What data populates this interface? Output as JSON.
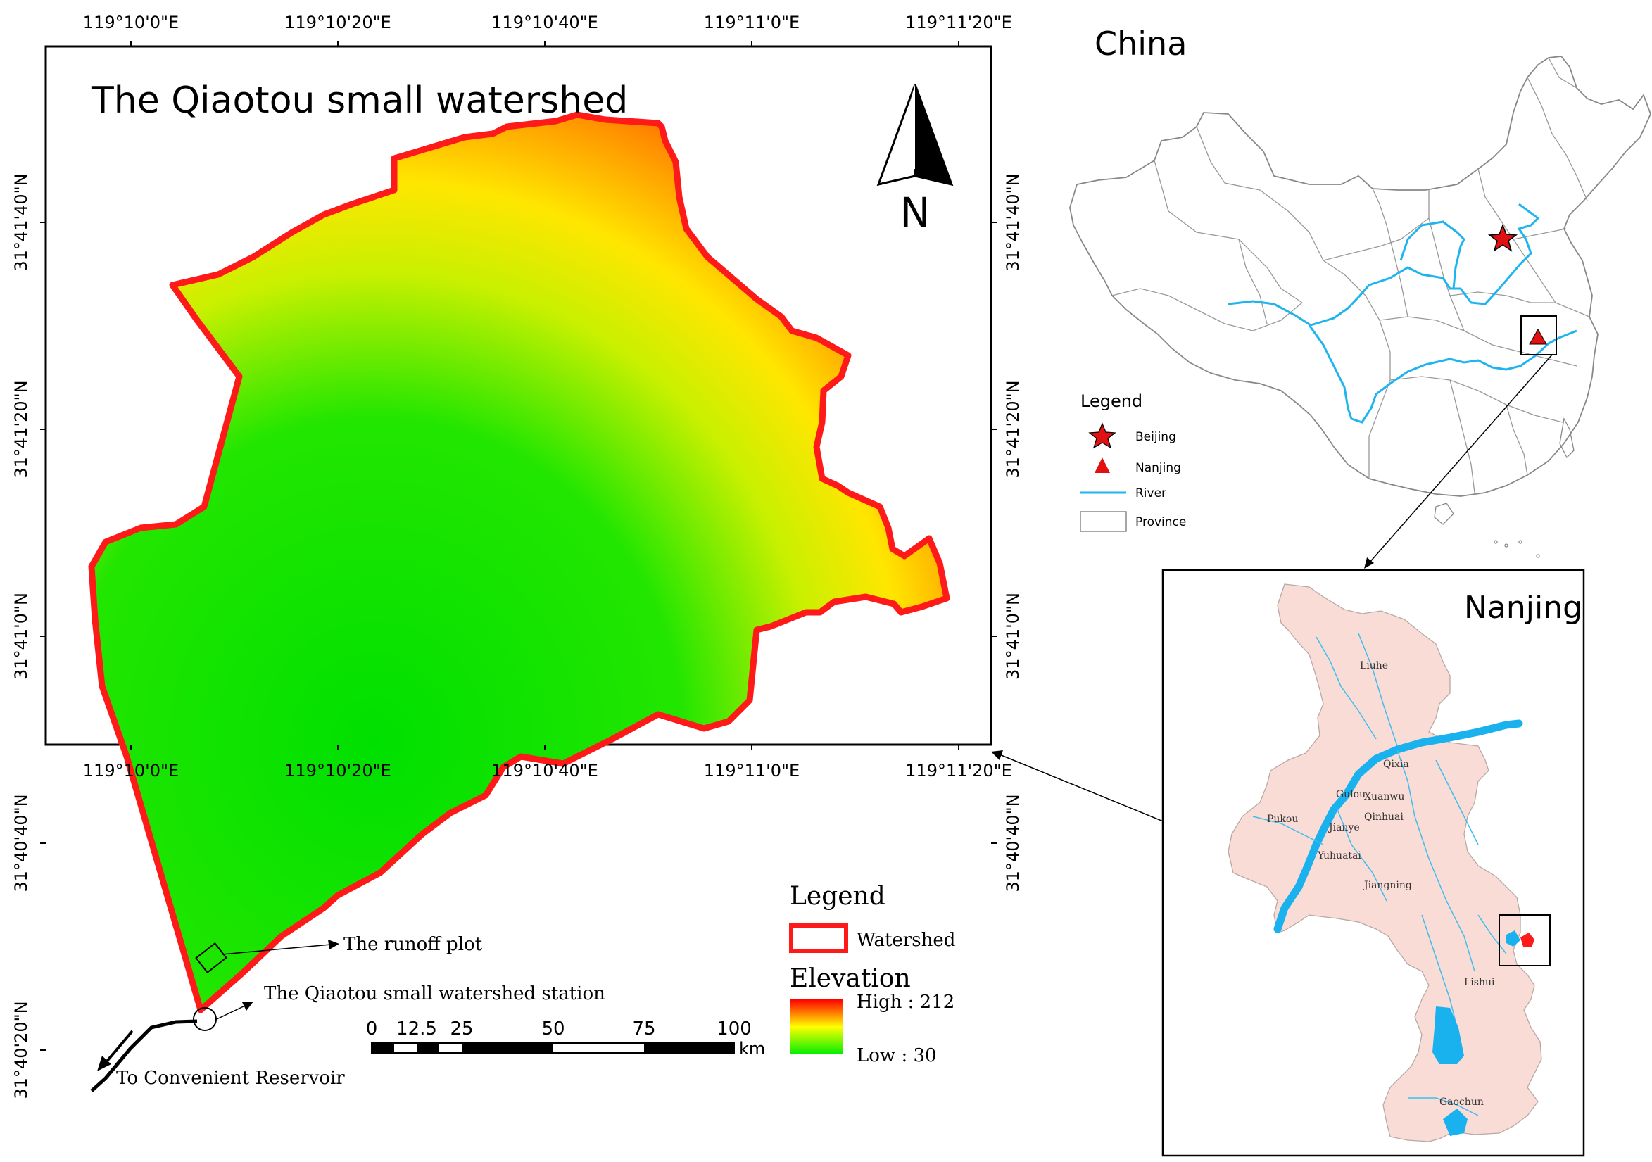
{
  "main_map": {
    "title": "The Qiaotou small watershed",
    "north_label": "N",
    "top_lon_ticks": [
      "119°10'0\"E",
      "119°10'20\"E",
      "119°10'40\"E",
      "119°11'0\"E",
      "119°11'20\"E"
    ],
    "bottom_lon_ticks": [
      "119°10'0\"E",
      "119°10'20\"E",
      "119°10'40\"E",
      "119°11'0\"E",
      "119°11'20\"E"
    ],
    "left_lat_ticks": [
      "31°41'40\"N",
      "31°41'20\"N",
      "31°41'0\"N",
      "31°40'40\"N",
      "31°40'20\"N"
    ],
    "right_lat_ticks": [
      "31°41'40\"N",
      "31°41'20\"N",
      "31°41'0\"N",
      "31°40'40\"N"
    ],
    "labels": {
      "runoff_plot": "The runoff plot",
      "station": "The Qiaotou small watershed station",
      "reservoir": "To Convenient Reservoir"
    },
    "scale_bar": {
      "ticks": [
        "0",
        "12.5",
        "25",
        "50",
        "75",
        "100"
      ],
      "unit": "km"
    },
    "legend": {
      "title": "Legend",
      "watershed_label": "Watershed",
      "elevation_title": "Elevation",
      "high_label": "High : 212",
      "low_label": "Low : 30"
    }
  },
  "china_map": {
    "title": "China",
    "legend": {
      "title": "Legend",
      "items": [
        "Beijing",
        "Nanjing",
        "River",
        "Province"
      ]
    }
  },
  "nanjing_map": {
    "title": "Nanjing",
    "districts": [
      "Liuhe",
      "Qixia",
      "Gulou",
      "Xuanwu",
      "Pukou",
      "Qinhuai",
      "Jianye",
      "Yuhuatai",
      "Jiangning",
      "Lishui",
      "Gaochun"
    ]
  },
  "colors": {
    "watershed_outline": "#ff1a1a",
    "elevation_high": "#ff0000",
    "elevation_mid": "#ffff00",
    "elevation_low": "#00dd00",
    "river": "#1eb4f0",
    "nanjing_fill": "#f9dcd6",
    "water": "#1ab2ee"
  }
}
